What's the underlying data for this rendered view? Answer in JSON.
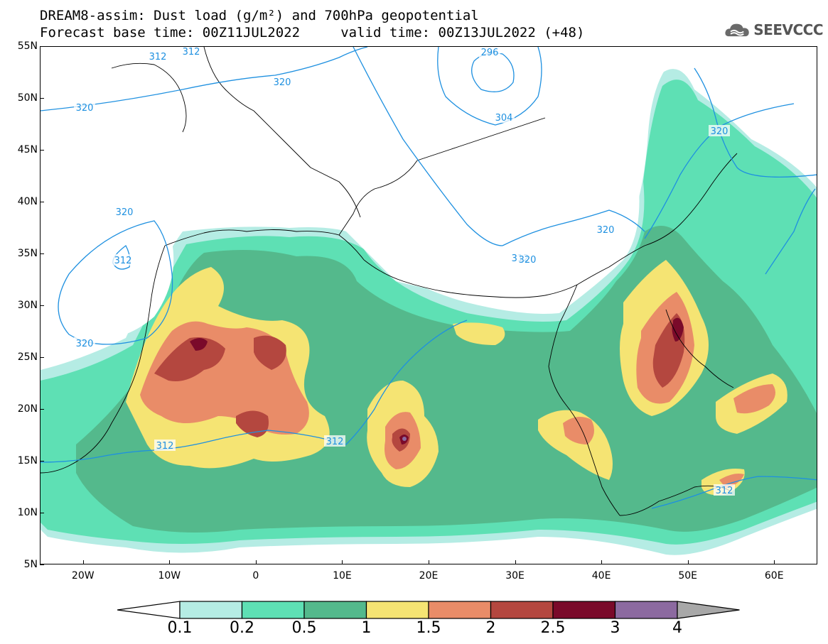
{
  "title_line1": "DREAM8-assim: Dust load (g/m²) and 700hPa geopotential",
  "title_line2": "Forecast base time: 00Z11JUL2022     valid time: 00Z13JUL2022 (+48)",
  "logo_text": "SEEVCCC",
  "map": {
    "lon_range": [
      -25,
      65
    ],
    "lat_range": [
      5,
      55
    ],
    "lat_labels": [
      "55N",
      "50N",
      "45N",
      "40N",
      "35N",
      "30N",
      "25N",
      "20N",
      "15N",
      "10N",
      "5N"
    ],
    "lon_labels": [
      "20W",
      "10W",
      "0",
      "10E",
      "20E",
      "30E",
      "40E",
      "50E",
      "60E"
    ],
    "contour_color": "#1e90e0",
    "contour_labels": [
      "312",
      "312",
      "320",
      "320",
      "296",
      "304",
      "320",
      "320",
      "312",
      "320",
      "312",
      "312",
      "312",
      "320",
      "320",
      "312"
    ]
  },
  "legend": {
    "labels": [
      "0.1",
      "0.2",
      "0.5",
      "1",
      "1.5",
      "2",
      "2.5",
      "3",
      "4"
    ],
    "colors": [
      "#b5ece4",
      "#5ee0b4",
      "#54b98c",
      "#f5e473",
      "#e98c68",
      "#b4473f",
      "#7a0a2a",
      "#8c6aa0",
      "#a8a8a8"
    ],
    "under_color": "#ffffff"
  }
}
